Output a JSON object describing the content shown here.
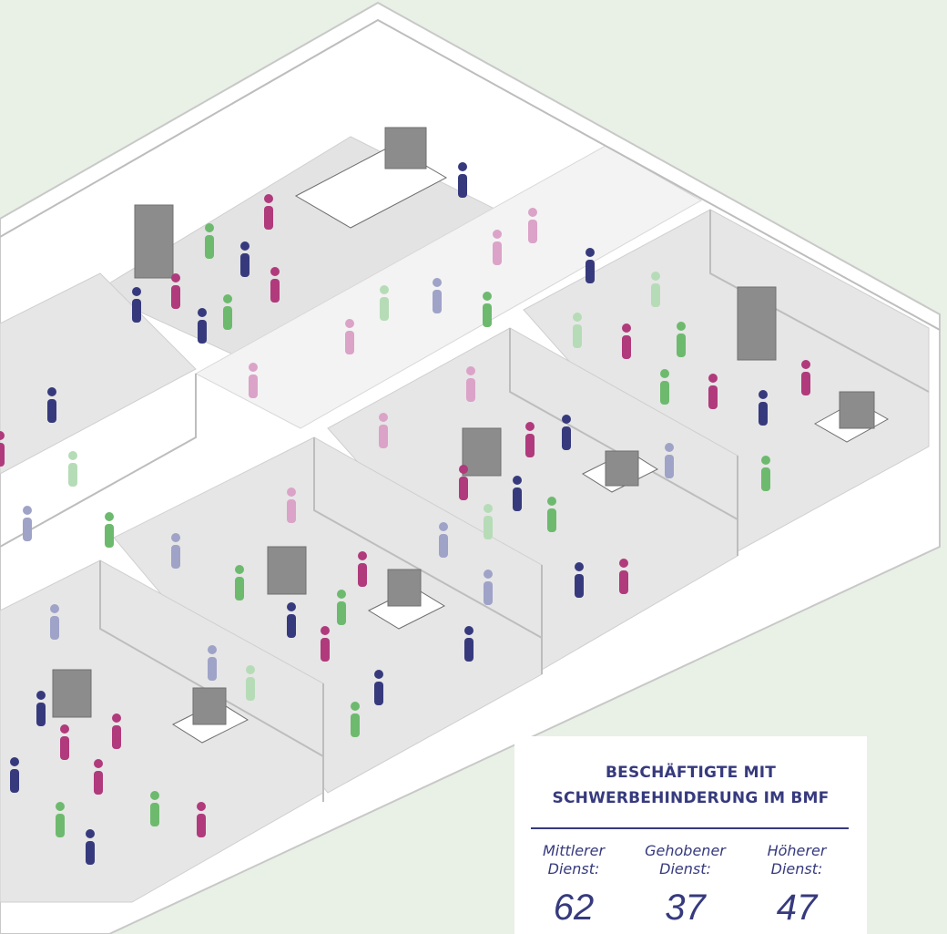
{
  "card": {
    "title_lines": [
      "BESCHÄFTIGTE MIT",
      "SCHWERBEHINDERUNG IM BMF"
    ],
    "stats": [
      {
        "label": "Mittlerer Dienst:",
        "value": "62"
      },
      {
        "label": "Gehobener Dienst:",
        "value": "37"
      },
      {
        "label": "Höherer Dienst:",
        "value": "47"
      }
    ]
  }
}
